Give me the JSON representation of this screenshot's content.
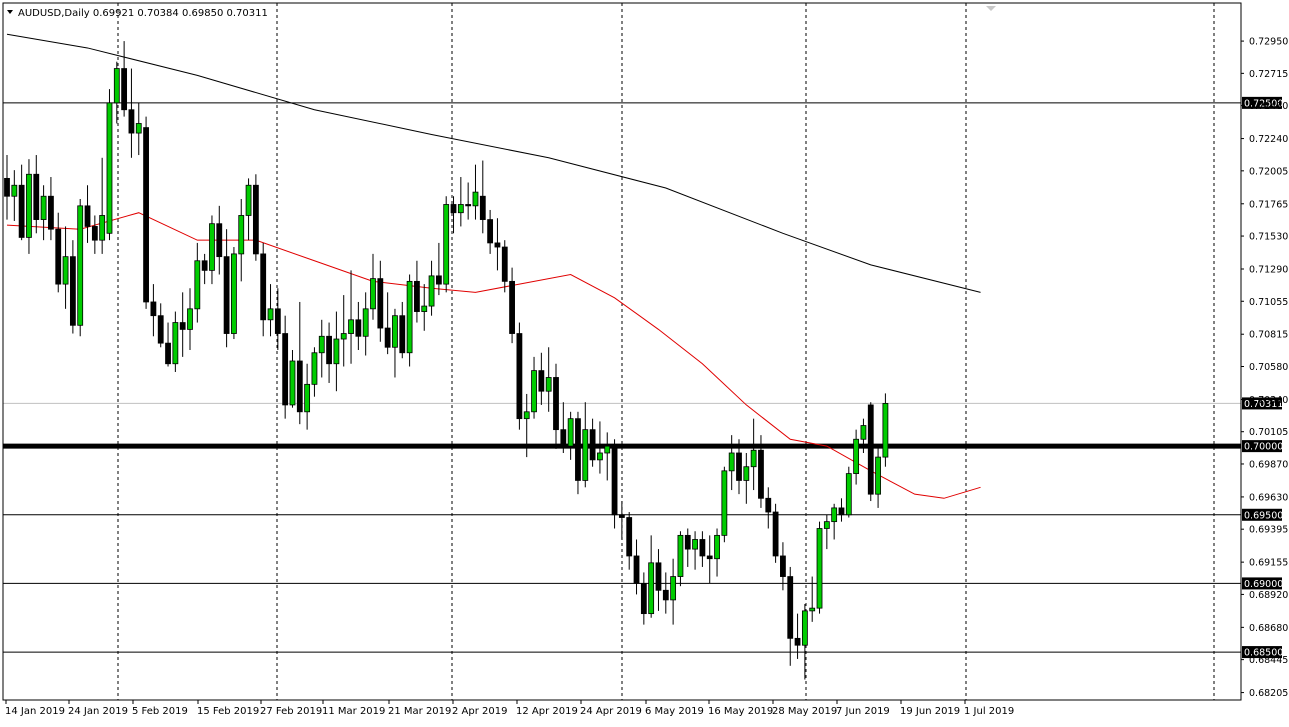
{
  "chart_data": {
    "type": "candlestick",
    "title": "AUDUSD,Daily  0.69921 0.70384 0.69850 0.70311",
    "symbol": "AUDUSD",
    "timeframe": "Daily",
    "ohlc_last": {
      "open": 0.69921,
      "high": 0.70384,
      "low": 0.6985,
      "close": 0.70311
    },
    "ylim": [
      0.6814,
      0.7314
    ],
    "price_ticks": [
      "0.72950",
      "0.72715",
      "0.72480",
      "0.72240",
      "0.72005",
      "0.71765",
      "0.71530",
      "0.71290",
      "0.71055",
      "0.70815",
      "0.70580",
      "0.70340",
      "0.70105",
      "0.69870",
      "0.69630",
      "0.69395",
      "0.69155",
      "0.68920",
      "0.68680",
      "0.68445",
      "0.68205"
    ],
    "date_ticks": [
      "14 Jan 2019",
      "24 Jan 2019",
      "5 Feb 2019",
      "15 Feb 2019",
      "27 Feb 2019",
      "11 Mar 2019",
      "21 Mar 2019",
      "2 Apr 2019",
      "12 Apr 2019",
      "24 Apr 2019",
      "6 May 2019",
      "16 May 2019",
      "28 May 2019",
      "7 Jun 2019",
      "19 Jun 2019",
      "1 Jul 2019"
    ],
    "horizontal_lines": [
      {
        "value": 0.725,
        "label": "0.72500",
        "weight": "thin"
      },
      {
        "value": 0.7,
        "label": "0.70000",
        "weight": "thick"
      },
      {
        "value": 0.695,
        "label": "0.69500",
        "weight": "thin"
      },
      {
        "value": 0.69,
        "label": "0.69000",
        "weight": "thin"
      },
      {
        "value": 0.685,
        "label": "0.68500",
        "weight": "thin"
      }
    ],
    "current_price": {
      "value": 0.70311,
      "label": "0.70311"
    },
    "colors": {
      "bull": "#00cc00",
      "bear": "#000000",
      "ma_fast": "#e00000",
      "ma_slow": "#000000",
      "grid": "#000000",
      "badge": "#000000"
    },
    "candles": [
      [
        0.7195,
        0.7212,
        0.7165,
        0.7182
      ],
      [
        0.7182,
        0.7201,
        0.7164,
        0.719
      ],
      [
        0.719,
        0.7205,
        0.715,
        0.7152
      ],
      [
        0.7152,
        0.7209,
        0.714,
        0.7198
      ],
      [
        0.7198,
        0.7212,
        0.7155,
        0.7165
      ],
      [
        0.7165,
        0.719,
        0.715,
        0.7182
      ],
      [
        0.7182,
        0.7196,
        0.715,
        0.7158
      ],
      [
        0.7158,
        0.717,
        0.7112,
        0.7118
      ],
      [
        0.7118,
        0.716,
        0.71,
        0.7138
      ],
      [
        0.7138,
        0.715,
        0.7082,
        0.7088
      ],
      [
        0.7088,
        0.718,
        0.708,
        0.7175
      ],
      [
        0.7175,
        0.719,
        0.7148,
        0.716
      ],
      [
        0.716,
        0.7168,
        0.714,
        0.715
      ],
      [
        0.715,
        0.721,
        0.714,
        0.7168
      ],
      [
        0.7155,
        0.726,
        0.715,
        0.725
      ],
      [
        0.725,
        0.728,
        0.7235,
        0.7275
      ],
      [
        0.7275,
        0.7295,
        0.724,
        0.7245
      ],
      [
        0.7245,
        0.7275,
        0.721,
        0.7228
      ],
      [
        0.7228,
        0.725,
        0.7212,
        0.7235
      ],
      [
        0.7232,
        0.724,
        0.71,
        0.7105
      ],
      [
        0.7105,
        0.7118,
        0.708,
        0.7095
      ],
      [
        0.7095,
        0.7104,
        0.7072,
        0.7075
      ],
      [
        0.7075,
        0.709,
        0.7058,
        0.706
      ],
      [
        0.706,
        0.7098,
        0.7054,
        0.709
      ],
      [
        0.709,
        0.7112,
        0.7065,
        0.7085
      ],
      [
        0.7085,
        0.7115,
        0.707,
        0.71
      ],
      [
        0.71,
        0.7148,
        0.709,
        0.7135
      ],
      [
        0.7135,
        0.714,
        0.7118,
        0.7128
      ],
      [
        0.7128,
        0.7168,
        0.7118,
        0.7162
      ],
      [
        0.7162,
        0.7175,
        0.7125,
        0.7138
      ],
      [
        0.7138,
        0.7158,
        0.7072,
        0.7082
      ],
      [
        0.7082,
        0.7145,
        0.7078,
        0.714
      ],
      [
        0.714,
        0.718,
        0.712,
        0.7168
      ],
      [
        0.7168,
        0.7195,
        0.715,
        0.719
      ],
      [
        0.719,
        0.7198,
        0.7135,
        0.714
      ],
      [
        0.714,
        0.7148,
        0.708,
        0.7092
      ],
      [
        0.7092,
        0.7118,
        0.708,
        0.71
      ],
      [
        0.71,
        0.7115,
        0.707,
        0.7082
      ],
      [
        0.7082,
        0.7095,
        0.702,
        0.703
      ],
      [
        0.703,
        0.707,
        0.7028,
        0.7062
      ],
      [
        0.7062,
        0.7105,
        0.7016,
        0.7025
      ],
      [
        0.7025,
        0.706,
        0.7012,
        0.7045
      ],
      [
        0.7045,
        0.7072,
        0.7036,
        0.7068
      ],
      [
        0.7068,
        0.7092,
        0.705,
        0.708
      ],
      [
        0.708,
        0.709,
        0.7046,
        0.706
      ],
      [
        0.706,
        0.7098,
        0.704,
        0.7078
      ],
      [
        0.7078,
        0.711,
        0.7058,
        0.7082
      ],
      [
        0.7082,
        0.7128,
        0.706,
        0.7092
      ],
      [
        0.7092,
        0.7105,
        0.707,
        0.708
      ],
      [
        0.708,
        0.7112,
        0.7066,
        0.71
      ],
      [
        0.71,
        0.714,
        0.7092,
        0.7122
      ],
      [
        0.7122,
        0.7135,
        0.7076,
        0.7086
      ],
      [
        0.7086,
        0.7112,
        0.7067,
        0.7072
      ],
      [
        0.7072,
        0.71,
        0.705,
        0.7095
      ],
      [
        0.7095,
        0.7105,
        0.7064,
        0.7068
      ],
      [
        0.7068,
        0.7125,
        0.7058,
        0.712
      ],
      [
        0.712,
        0.7135,
        0.709,
        0.7098
      ],
      [
        0.7098,
        0.7118,
        0.7084,
        0.7102
      ],
      [
        0.7102,
        0.7135,
        0.7095,
        0.7124
      ],
      [
        0.7124,
        0.7148,
        0.711,
        0.7118
      ],
      [
        0.7118,
        0.7182,
        0.7112,
        0.7176
      ],
      [
        0.7176,
        0.7182,
        0.7155,
        0.717
      ],
      [
        0.717,
        0.7196,
        0.716,
        0.7176
      ],
      [
        0.7176,
        0.7192,
        0.7165,
        0.7175
      ],
      [
        0.7175,
        0.7205,
        0.7165,
        0.7185
      ],
      [
        0.7182,
        0.7208,
        0.7155,
        0.7165
      ],
      [
        0.7165,
        0.7172,
        0.714,
        0.7148
      ],
      [
        0.7148,
        0.7166,
        0.7128,
        0.7145
      ],
      [
        0.7145,
        0.715,
        0.7112,
        0.712
      ],
      [
        0.712,
        0.713,
        0.7075,
        0.7082
      ],
      [
        0.7082,
        0.709,
        0.7012,
        0.702
      ],
      [
        0.702,
        0.7038,
        0.6992,
        0.7025
      ],
      [
        0.7025,
        0.7065,
        0.702,
        0.7055
      ],
      [
        0.7055,
        0.7068,
        0.703,
        0.704
      ],
      [
        0.704,
        0.7072,
        0.7025,
        0.705
      ],
      [
        0.705,
        0.706,
        0.6998,
        0.7012
      ],
      [
        0.7012,
        0.7032,
        0.6995,
        0.7
      ],
      [
        0.7,
        0.7025,
        0.699,
        0.702
      ],
      [
        0.702,
        0.7025,
        0.6965,
        0.6975
      ],
      [
        0.6975,
        0.7032,
        0.697,
        0.7012
      ],
      [
        0.7012,
        0.702,
        0.6985,
        0.699
      ],
      [
        0.699,
        0.7018,
        0.698,
        0.6995
      ],
      [
        0.6995,
        0.701,
        0.6975,
        0.7
      ],
      [
        0.7,
        0.7005,
        0.694,
        0.695
      ],
      [
        0.695,
        0.696,
        0.6932,
        0.6948
      ],
      [
        0.6948,
        0.6952,
        0.691,
        0.692
      ],
      [
        0.692,
        0.6932,
        0.6892,
        0.69
      ],
      [
        0.69,
        0.6908,
        0.687,
        0.6878
      ],
      [
        0.6878,
        0.6935,
        0.6875,
        0.6915
      ],
      [
        0.6915,
        0.6925,
        0.688,
        0.6895
      ],
      [
        0.6895,
        0.6908,
        0.6878,
        0.6888
      ],
      [
        0.6888,
        0.6918,
        0.687,
        0.6905
      ],
      [
        0.6905,
        0.6938,
        0.6898,
        0.6935
      ],
      [
        0.6935,
        0.694,
        0.6912,
        0.6925
      ],
      [
        0.6925,
        0.6938,
        0.691,
        0.6932
      ],
      [
        0.6932,
        0.6938,
        0.6912,
        0.692
      ],
      [
        0.692,
        0.6935,
        0.69,
        0.6918
      ],
      [
        0.6918,
        0.694,
        0.6905,
        0.6935
      ],
      [
        0.6935,
        0.6985,
        0.693,
        0.6982
      ],
      [
        0.6982,
        0.7008,
        0.6968,
        0.6995
      ],
      [
        0.6995,
        0.7005,
        0.6965,
        0.6975
      ],
      [
        0.6975,
        0.6995,
        0.6958,
        0.6985
      ],
      [
        0.6985,
        0.702,
        0.6968,
        0.6997
      ],
      [
        0.6997,
        0.7008,
        0.6955,
        0.6962
      ],
      [
        0.6962,
        0.697,
        0.694,
        0.6952
      ],
      [
        0.6952,
        0.6958,
        0.6915,
        0.692
      ],
      [
        0.692,
        0.693,
        0.6895,
        0.6905
      ],
      [
        0.6905,
        0.6912,
        0.684,
        0.686
      ],
      [
        0.686,
        0.6878,
        0.6845,
        0.6855
      ],
      [
        0.6855,
        0.6885,
        0.683,
        0.688
      ],
      [
        0.688,
        0.6905,
        0.6872,
        0.6882
      ],
      [
        0.6882,
        0.6945,
        0.6878,
        0.694
      ],
      [
        0.694,
        0.695,
        0.6925,
        0.6945
      ],
      [
        0.6945,
        0.6958,
        0.6932,
        0.6955
      ],
      [
        0.6955,
        0.6962,
        0.6945,
        0.695
      ],
      [
        0.695,
        0.6985,
        0.6948,
        0.698
      ],
      [
        0.698,
        0.7012,
        0.6972,
        0.7005
      ],
      [
        0.7005,
        0.702,
        0.6995,
        0.7015
      ],
      [
        0.703,
        0.7032,
        0.696,
        0.6965
      ],
      [
        0.6965,
        0.7,
        0.6955,
        0.6992
      ],
      [
        0.6992,
        0.70384,
        0.6985,
        0.70311
      ]
    ],
    "ma_fast": [
      [
        0,
        0.7161
      ],
      [
        10,
        0.7158
      ],
      [
        18,
        0.717
      ],
      [
        26,
        0.715
      ],
      [
        34,
        0.715
      ],
      [
        42,
        0.7135
      ],
      [
        50,
        0.712
      ],
      [
        58,
        0.7115
      ],
      [
        64,
        0.7112
      ],
      [
        70,
        0.7118
      ],
      [
        77,
        0.7125
      ],
      [
        83,
        0.7108
      ],
      [
        89,
        0.7085
      ],
      [
        95,
        0.706
      ],
      [
        101,
        0.703
      ],
      [
        107,
        0.7005
      ],
      [
        112,
        0.7
      ],
      [
        118,
        0.6982
      ],
      [
        124,
        0.6965
      ],
      [
        128,
        0.6962
      ],
      [
        133,
        0.697
      ]
    ],
    "ma_slow": [
      [
        0,
        0.73
      ],
      [
        11,
        0.729
      ],
      [
        26,
        0.727
      ],
      [
        42,
        0.7245
      ],
      [
        58,
        0.7227
      ],
      [
        74,
        0.721
      ],
      [
        90,
        0.7188
      ],
      [
        106,
        0.7155
      ],
      [
        118,
        0.7132
      ],
      [
        133,
        0.7112
      ]
    ]
  }
}
